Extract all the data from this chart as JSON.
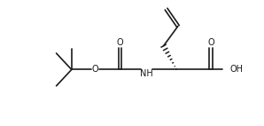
{
  "bg_color": "#ffffff",
  "line_color": "#1a1a1a",
  "line_width": 1.2,
  "font_size": 7.0,
  "fig_width": 2.98,
  "fig_height": 1.42,
  "dpi": 100,
  "xlim": [
    0,
    10
  ],
  "ylim": [
    0,
    4.5
  ]
}
